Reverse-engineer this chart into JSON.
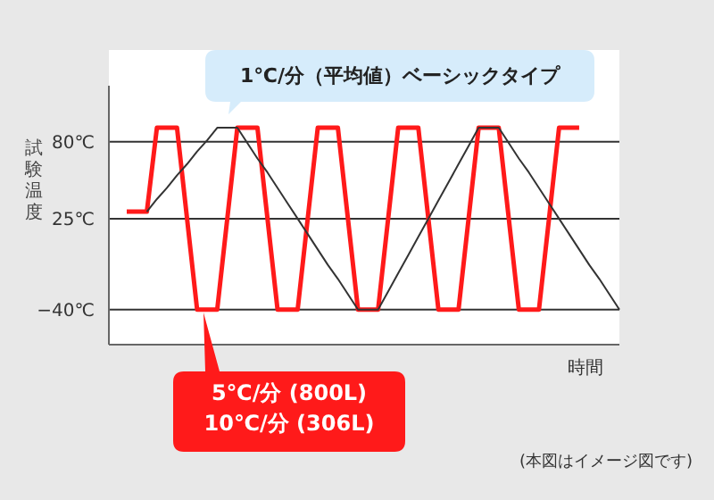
{
  "chart_data": {
    "type": "line",
    "xlabel": "時間",
    "ylabel": "試験温度",
    "categories": [
      null,
      null,
      null,
      null,
      null,
      null,
      null,
      null,
      null,
      null,
      null,
      null,
      null,
      null,
      null,
      null,
      null,
      null,
      null,
      null,
      null,
      null,
      null,
      null,
      null,
      null,
      null,
      null,
      null,
      null,
      null,
      null,
      null,
      null,
      null,
      null,
      null,
      null,
      null,
      null,
      null,
      null,
      null,
      null,
      null,
      null,
      null,
      null,
      null,
      null
    ],
    "ylim": [
      -65,
      120
    ],
    "yticks": [
      {
        "value": -40,
        "label": "−40℃"
      },
      {
        "value": 25,
        "label": "25℃"
      },
      {
        "value": 80,
        "label": "80℃"
      }
    ],
    "grid": "y",
    "series": [
      {
        "color": "#ff1a1a",
        "values": [
          30,
          30,
          30,
          90,
          90,
          90,
          25,
          -40,
          -40,
          -40,
          25,
          90,
          90,
          90,
          25,
          -40,
          -40,
          -40,
          25,
          90,
          90,
          90,
          25,
          -40,
          -40,
          -40,
          25,
          90,
          90,
          90,
          25,
          -40,
          -40,
          -40,
          25,
          90,
          90,
          90,
          25,
          -40,
          -40,
          -40,
          25,
          90,
          90,
          90,
          null,
          null,
          null,
          null
        ]
      },
      {
        "color": "#333333",
        "values": [
          null,
          null,
          30,
          39,
          47,
          56,
          64,
          73,
          81,
          90,
          90,
          90,
          79,
          68,
          58,
          47,
          36,
          25,
          14,
          3,
          -8,
          -18,
          -29,
          -40,
          -40,
          -40,
          -27,
          -14,
          -1,
          12,
          25,
          38,
          51,
          64,
          77,
          90,
          90,
          90,
          79,
          68,
          58,
          47,
          36,
          25,
          14,
          3,
          -8,
          -18,
          -29,
          -40
        ]
      }
    ],
    "annotations": [
      "1℃/分（平均値）ベーシックタイプ",
      "5℃/分 (800L)\n10℃/分 (306L)",
      "(本図はイメージ図です)"
    ]
  }
}
